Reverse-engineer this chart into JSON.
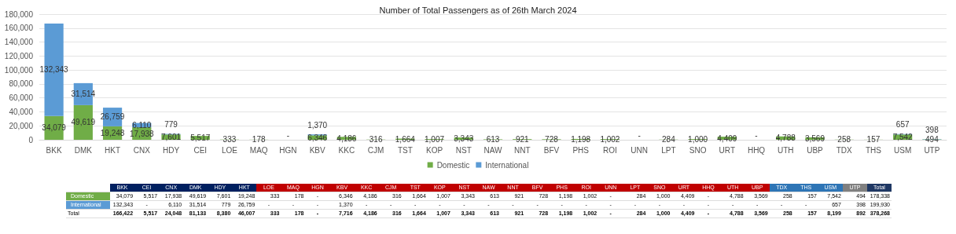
{
  "chart_data": [
    {
      "type": "bar",
      "title": "Number of Total Passengers as of 26th March 2024",
      "stacked": true,
      "grid": "y",
      "legend": "bottom",
      "categories": [
        "BKK",
        "DMK",
        "HKT",
        "CNX",
        "HDY",
        "CEI",
        "LOE",
        "MAQ",
        "HGN",
        "KBV",
        "KKC",
        "CJM",
        "TST",
        "KOP",
        "NST",
        "NAW",
        "NNT",
        "BFV",
        "PHS",
        "ROI",
        "UNN",
        "LPT",
        "SNO",
        "URT",
        "HHQ",
        "UTH",
        "UBP",
        "TDX",
        "THS",
        "USM",
        "UTP"
      ],
      "ylim": [
        0,
        180000
      ],
      "yticks": [
        0,
        {
          "value": 20000,
          "label": "20,000"
        },
        {
          "value": 40000,
          "label": "40,000"
        },
        {
          "value": 60000,
          "label": "60,000"
        },
        {
          "value": 80000,
          "label": "80,000"
        },
        {
          "value": 100000,
          "label": "100,000"
        },
        {
          "value": 120000,
          "label": "120,000"
        },
        {
          "value": 140000,
          "label": "140,000"
        },
        {
          "value": 160000,
          "label": "160,000"
        },
        {
          "value": 180000,
          "label": "180,000"
        }
      ],
      "series": [
        {
          "name": "Domestic",
          "color": "#70ad47",
          "values": [
            34079,
            49619,
            19248,
            17938,
            7601,
            5517,
            333,
            178,
            null,
            6346,
            4186,
            316,
            1664,
            1007,
            3343,
            613,
            921,
            728,
            1198,
            1002,
            null,
            284,
            1000,
            4409,
            null,
            4788,
            3569,
            258,
            157,
            7542,
            494
          ],
          "value_labels": [
            "34,079",
            "49,619",
            "19,248",
            "17,938",
            "7,601",
            "5,517",
            "333",
            "178",
            "-",
            "6,346",
            "4,186",
            "316",
            "1,664",
            "1,007",
            "3,343",
            "613",
            "921",
            "728",
            "1,198",
            "1,002",
            "-",
            "284",
            "1,000",
            "4,409",
            "-",
            "4,788",
            "3,569",
            "258",
            "157",
            "7,542",
            "494"
          ]
        },
        {
          "name": "International",
          "color": "#5b9bd5",
          "values": [
            132343,
            31514,
            26759,
            6110,
            779,
            null,
            null,
            null,
            null,
            1370,
            null,
            null,
            null,
            null,
            null,
            null,
            null,
            null,
            null,
            null,
            null,
            null,
            null,
            null,
            null,
            null,
            null,
            null,
            null,
            657,
            398
          ],
          "value_labels": [
            "132,343",
            "31,514",
            "26,759",
            "6,110",
            "779",
            null,
            null,
            null,
            null,
            "1,370",
            null,
            null,
            null,
            null,
            null,
            null,
            null,
            null,
            null,
            null,
            null,
            null,
            null,
            null,
            null,
            null,
            null,
            null,
            null,
            "657",
            "398"
          ]
        }
      ]
    },
    {
      "type": "other",
      "categories": [
        "BKK",
        "CEI",
        "CNX",
        "DMK",
        "HDY",
        "HKT",
        "LOE",
        "MAQ",
        "HGN",
        "KBV",
        "KKC",
        "CJM",
        "TST",
        "KOP",
        "NST",
        "NAW",
        "NNT",
        "BFV",
        "PHS",
        "ROI",
        "UNN",
        "LPT",
        "SNO",
        "URT",
        "HHQ",
        "UTH",
        "UBP",
        "TDX",
        "THS",
        "USM",
        "UTP",
        "Total"
      ],
      "colors": [
        "#002060",
        "#002060",
        "#002060",
        "#002060",
        "#002060",
        "#002060",
        "#c00000",
        "#c00000",
        "#c00000",
        "#c00000",
        "#c00000",
        "#c00000",
        "#c00000",
        "#c00000",
        "#c00000",
        "#c00000",
        "#c00000",
        "#c00000",
        "#c00000",
        "#c00000",
        "#c00000",
        "#c00000",
        "#c00000",
        "#c00000",
        "#c00000",
        "#c00000",
        "#c00000",
        "#2e75b6",
        "#2e75b6",
        "#2e75b6",
        "#808080",
        "#1f3864"
      ],
      "series": [
        {
          "name": "Domestic",
          "color": "#70ad47",
          "values": [
            34079,
            5517,
            17938,
            49619,
            7601,
            19248,
            333,
            178,
            null,
            6346,
            4186,
            316,
            1664,
            1007,
            3343,
            613,
            921,
            728,
            1198,
            1002,
            null,
            284,
            1000,
            4409,
            null,
            4788,
            3569,
            258,
            157,
            7542,
            494,
            178338
          ],
          "value_labels": [
            "34,079",
            "5,517",
            "17,938",
            "49,619",
            "7,601",
            "19,248",
            "333",
            "178",
            "-",
            "6,346",
            "4,186",
            "316",
            "1,664",
            "1,007",
            "3,343",
            "613",
            "921",
            "728",
            "1,198",
            "1,002",
            "-",
            "284",
            "1,000",
            "4,409",
            "-",
            "4,788",
            "3,569",
            "258",
            "157",
            "7,542",
            "494",
            "178,338"
          ]
        },
        {
          "name": "International",
          "color": "#5b9bd5",
          "values": [
            132343,
            null,
            6110,
            31514,
            779,
            26759,
            null,
            null,
            null,
            1370,
            null,
            null,
            null,
            null,
            null,
            null,
            null,
            null,
            null,
            null,
            null,
            null,
            null,
            null,
            null,
            null,
            null,
            null,
            null,
            657,
            398,
            199930
          ],
          "value_labels": [
            "132,343",
            "-",
            "6,110",
            "31,514",
            "779",
            "26,759",
            "-",
            "-",
            "-",
            "1,370",
            "-",
            "-",
            "-",
            "-",
            "-",
            "-",
            "-",
            "-",
            "-",
            "-",
            "-",
            "-",
            "-",
            "-",
            "-",
            "-",
            "-",
            "-",
            "-",
            "657",
            "398",
            "199,930"
          ]
        },
        {
          "name": "Total",
          "values": [
            166422,
            5517,
            24048,
            81133,
            8380,
            46007,
            333,
            178,
            null,
            7716,
            4186,
            316,
            1664,
            1007,
            3343,
            613,
            921,
            728,
            1198,
            1002,
            null,
            284,
            1000,
            4409,
            null,
            4788,
            3569,
            258,
            157,
            8199,
            892,
            378268
          ],
          "value_labels": [
            "166,422",
            "5,517",
            "24,048",
            "81,133",
            "8,380",
            "46,007",
            "333",
            "178",
            "-",
            "7,716",
            "4,186",
            "316",
            "1,664",
            "1,007",
            "3,343",
            "613",
            "921",
            "728",
            "1,198",
            "1,002",
            "-",
            "284",
            "1,000",
            "4,409",
            "-",
            "4,788",
            "3,569",
            "258",
            "157",
            "8,199",
            "892",
            "378,268"
          ]
        }
      ]
    }
  ]
}
